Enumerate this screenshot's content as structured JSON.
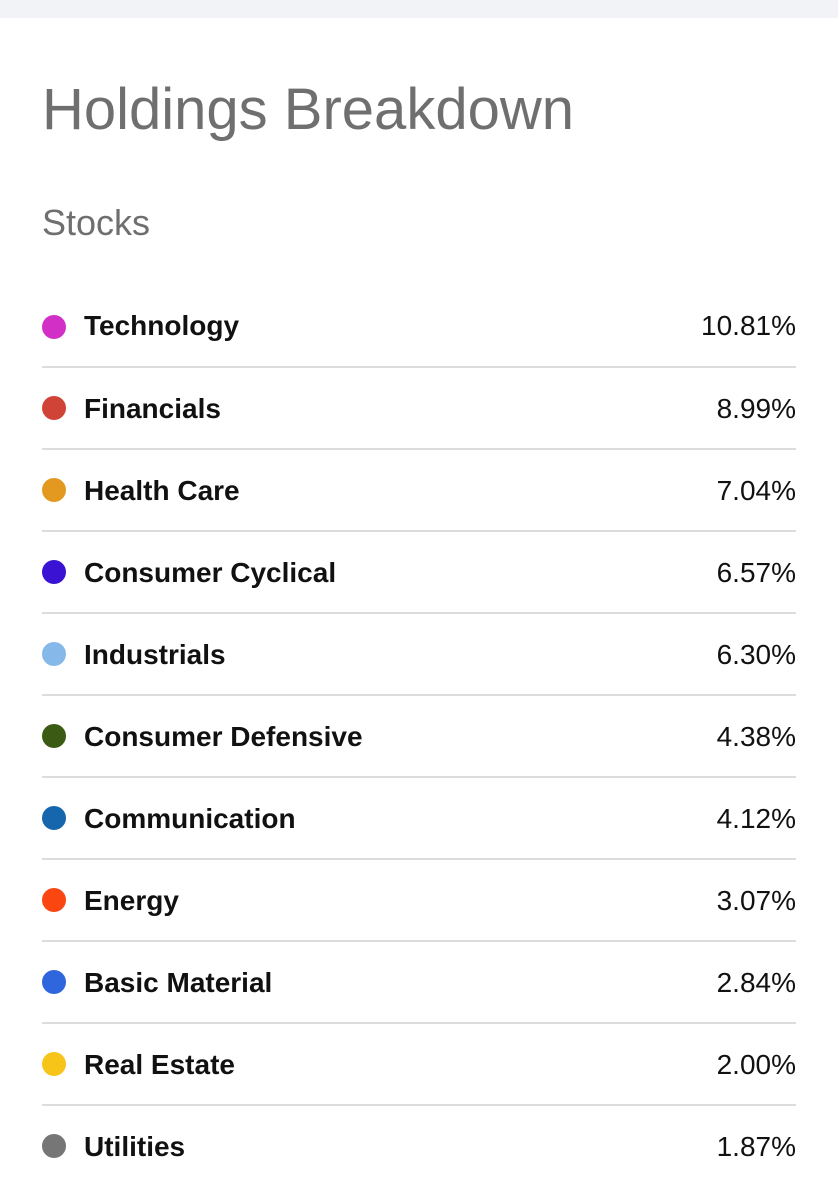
{
  "header": {
    "title": "Holdings Breakdown"
  },
  "section": {
    "label": "Stocks"
  },
  "holdings": [
    {
      "name": "Technology",
      "percent": "10.81%",
      "color": "#d12fc6"
    },
    {
      "name": "Financials",
      "percent": "8.99%",
      "color": "#d04437"
    },
    {
      "name": "Health Care",
      "percent": "7.04%",
      "color": "#e3991f"
    },
    {
      "name": "Consumer Cyclical",
      "percent": "6.57%",
      "color": "#3a12d4"
    },
    {
      "name": "Industrials",
      "percent": "6.30%",
      "color": "#86b9ea"
    },
    {
      "name": "Consumer Defensive",
      "percent": "4.38%",
      "color": "#3b5a14"
    },
    {
      "name": "Communication",
      "percent": "4.12%",
      "color": "#1566ad"
    },
    {
      "name": "Energy",
      "percent": "3.07%",
      "color": "#fa4711"
    },
    {
      "name": "Basic Material",
      "percent": "2.84%",
      "color": "#2f66dd"
    },
    {
      "name": "Real Estate",
      "percent": "2.00%",
      "color": "#f7c41a"
    },
    {
      "name": "Utilities",
      "percent": "1.87%",
      "color": "#767676"
    }
  ]
}
